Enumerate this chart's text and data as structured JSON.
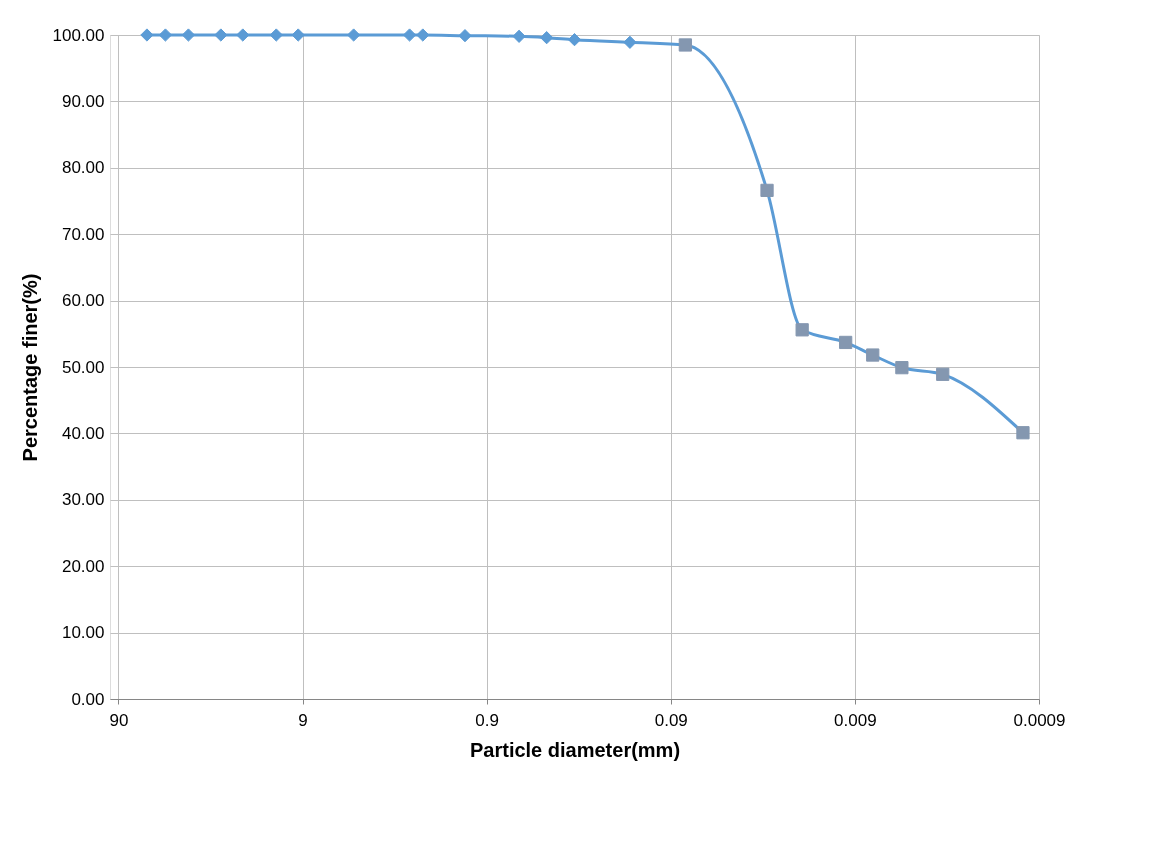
{
  "chart_data": {
    "type": "line",
    "xlabel": "Particle diameter(mm)",
    "ylabel": "Percentage finer(%)",
    "log": "x",
    "grid": true,
    "xlim": [
      100,
      0.0009
    ],
    "xticks": [
      90,
      9,
      0.9,
      0.09,
      0.009,
      0.0009
    ],
    "ylim": [
      0,
      100
    ],
    "yticks": [
      {
        "value": 0,
        "label": "0.00"
      },
      {
        "value": 10,
        "label": "10.00"
      },
      {
        "value": 20,
        "label": "20.00"
      },
      {
        "value": 30,
        "label": "30.00"
      },
      {
        "value": 40,
        "label": "40.00"
      },
      {
        "value": 50,
        "label": "50.00"
      },
      {
        "value": 60,
        "label": "60.00"
      },
      {
        "value": 70,
        "label": "70.00"
      },
      {
        "value": 80,
        "label": "80.00"
      },
      {
        "value": 90,
        "label": "90.00"
      },
      {
        "value": 100,
        "label": "100.00"
      }
    ],
    "series": [
      {
        "color": "#5b9bd5",
        "marker": "none",
        "x": [
          63,
          50,
          37.5,
          25,
          19,
          12.5,
          9.5,
          4.75,
          2.36,
          2,
          1.18,
          0.6,
          0.425,
          0.3,
          0.15,
          0.075,
          0.027,
          0.0174,
          0.0101,
          0.0072,
          0.005,
          0.003,
          0.0011
        ],
        "values": [
          100,
          100,
          100,
          100,
          100,
          100,
          100,
          100,
          100,
          100,
          99.9,
          99.8,
          99.6,
          99.3,
          98.9,
          98.5,
          76.6,
          55.6,
          53.7,
          51.8,
          49.9,
          48.9,
          40.1
        ]
      },
      {
        "type": "scatter",
        "color": "#5b9bd5",
        "marker": "diamond",
        "x": [
          63,
          50,
          37.5,
          25,
          19,
          12.5,
          9.5,
          4.75,
          2.36,
          2,
          1.18,
          0.6,
          0.425,
          0.3,
          0.15
        ],
        "values": [
          100,
          100,
          100,
          100,
          100,
          100,
          100,
          100,
          100,
          100,
          99.9,
          99.8,
          99.6,
          99.3,
          98.9
        ]
      },
      {
        "type": "scatter",
        "color": "#8497b0",
        "marker": "square",
        "x": [
          0.075,
          0.027,
          0.0174,
          0.0101,
          0.0072,
          0.005,
          0.003,
          0.0011
        ],
        "values": [
          98.5,
          76.6,
          55.6,
          53.7,
          51.8,
          49.9,
          48.9,
          40.1
        ]
      }
    ]
  }
}
